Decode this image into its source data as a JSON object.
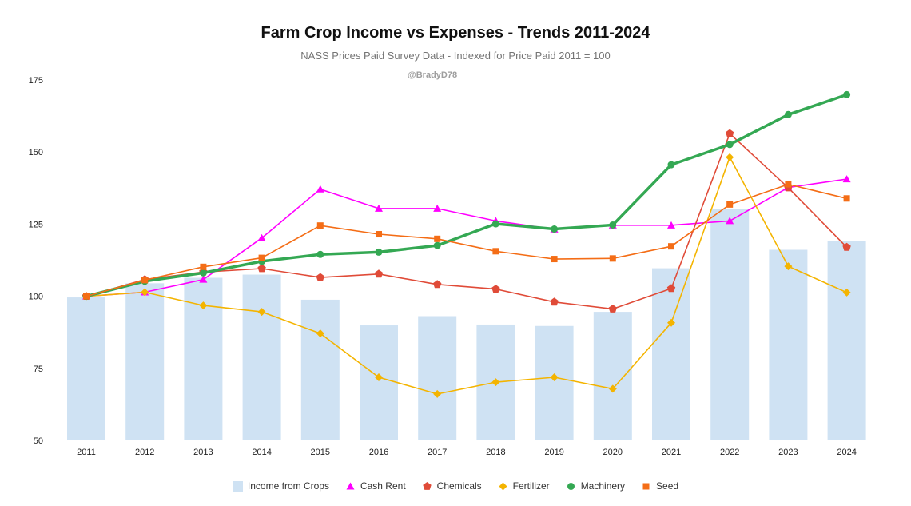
{
  "chart_data": {
    "type": "bar+line",
    "title": "Farm Crop Income vs Expenses - Trends 2011-2024",
    "subtitle": "NASS Prices Paid Survey Data - Indexed for Price Paid 2011 = 100",
    "watermark": "@BradyD78",
    "categories": [
      "2011",
      "2012",
      "2013",
      "2014",
      "2015",
      "2016",
      "2017",
      "2018",
      "2019",
      "2020",
      "2021",
      "2022",
      "2023",
      "2024"
    ],
    "ylim": [
      50,
      175
    ],
    "yticks": [
      50,
      75,
      100,
      125,
      150,
      175
    ],
    "grid": false,
    "legend_position": "bottom",
    "series": [
      {
        "name": "Income from Crops",
        "type": "bar",
        "color": "#cfe2f3",
        "marker": "square",
        "values": [
          99.6,
          104.5,
          106.4,
          107.5,
          98.8,
          89.9,
          93.1,
          90.2,
          89.7,
          94.6,
          109.7,
          130.2,
          116.1,
          119.2
        ]
      },
      {
        "name": "Cash Rent",
        "type": "line",
        "color": "#ff00ff",
        "marker": "triangle",
        "values": [
          100,
          101.4,
          105.8,
          120.2,
          137.1,
          130.4,
          130.4,
          126.1,
          123.2,
          124.6,
          124.6,
          126.1,
          137.7,
          140.6
        ]
      },
      {
        "name": "Chemicals",
        "type": "line",
        "color": "#e04b38",
        "marker": "pentagon",
        "values": [
          100,
          105.8,
          108.4,
          109.6,
          106.5,
          107.7,
          104.1,
          102.5,
          98.0,
          95.6,
          102.7,
          156.4,
          137.6,
          117.0
        ]
      },
      {
        "name": "Fertilizer",
        "type": "line",
        "color": "#f4b400",
        "marker": "diamond",
        "values": [
          100,
          101.4,
          96.8,
          94.6,
          87.1,
          71.9,
          66.1,
          70.2,
          71.9,
          67.9,
          90.8,
          148.2,
          110.4,
          101.3
        ]
      },
      {
        "name": "Machinery",
        "type": "line",
        "color": "#34a853",
        "marker": "circle",
        "values": [
          100,
          105.2,
          108.1,
          112.1,
          114.5,
          115.3,
          117.6,
          125.1,
          123.3,
          124.7,
          145.6,
          152.6,
          163.0,
          169.9
        ]
      },
      {
        "name": "Seed",
        "type": "line",
        "color": "#f46d16",
        "marker": "square",
        "values": [
          100,
          105.6,
          110.2,
          113.3,
          124.5,
          121.5,
          119.9,
          115.6,
          112.9,
          113.1,
          117.3,
          131.8,
          138.8,
          133.9
        ]
      }
    ]
  }
}
